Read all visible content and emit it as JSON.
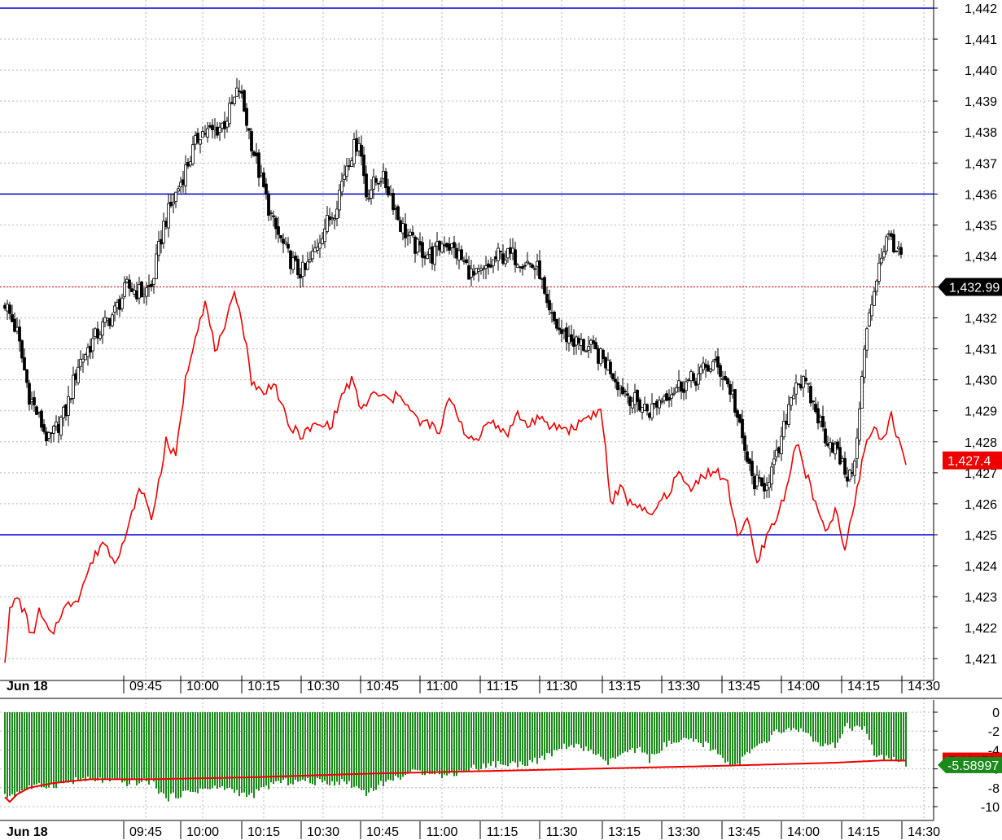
{
  "chart_data": [
    {
      "type": "candlestick",
      "panel": "price",
      "date_label": "Jun 18",
      "x_ticks": [
        "09:45",
        "10:00",
        "10:15",
        "10:30",
        "10:45",
        "11:00",
        "11:15",
        "11:30",
        "13:15",
        "13:30",
        "13:45",
        "14:00",
        "14:15",
        "14:30"
      ],
      "y_ticks": [
        "1,421",
        "1,422",
        "1,423",
        "1,424",
        "1,425",
        "1,426",
        "1,427",
        "1,428",
        "1,429",
        "1,430",
        "1,431",
        "1,432",
        "1,433",
        "1,434",
        "1,435",
        "1,436",
        "1,437",
        "1,438",
        "1,439",
        "1,440",
        "1,441",
        "1,442"
      ],
      "ylim": [
        1420.2,
        1442.2
      ],
      "grid": true,
      "horizontal_lines": [
        1442,
        1436,
        1425
      ],
      "last_price_line": 1433,
      "price_badge": "1,432.99",
      "series": [
        {
          "name": "",
          "type": "close_line",
          "color": "#000000",
          "anchors": [
            [
              0,
              1432.5
            ],
            [
              5,
              1431.5
            ],
            [
              10,
              1429.5
            ],
            [
              18,
              1428
            ],
            [
              25,
              1429
            ],
            [
              30,
              1430.5
            ],
            [
              38,
              1431.5
            ],
            [
              45,
              1432.2
            ],
            [
              50,
              1433
            ],
            [
              56,
              1432.8
            ],
            [
              60,
              1433
            ],
            [
              65,
              1435
            ],
            [
              70,
              1436
            ],
            [
              75,
              1437
            ],
            [
              80,
              1438
            ],
            [
              85,
              1438
            ],
            [
              90,
              1438.3
            ],
            [
              96,
              1439.4
            ],
            [
              100,
              1438
            ],
            [
              103,
              1437
            ],
            [
              110,
              1435
            ],
            [
              116,
              1434
            ],
            [
              120,
              1433.5
            ],
            [
              123,
              1433.5
            ],
            [
              126,
              1434
            ],
            [
              130,
              1434.8
            ],
            [
              135,
              1435.5
            ],
            [
              140,
              1437
            ],
            [
              145,
              1437.8
            ],
            [
              148,
              1436
            ],
            [
              154,
              1436.6
            ],
            [
              158,
              1436
            ],
            [
              162,
              1435
            ],
            [
              168,
              1434.3
            ],
            [
              175,
              1434
            ],
            [
              180,
              1434.5
            ],
            [
              186,
              1434
            ],
            [
              192,
              1433.3
            ],
            [
              197,
              1433.5
            ],
            [
              202,
              1434
            ],
            [
              208,
              1434
            ],
            [
              214,
              1433.8
            ],
            [
              219,
              1433.5
            ],
            [
              222,
              1432.2
            ],
            [
              228,
              1431.5
            ],
            [
              234,
              1431.2
            ],
            [
              240,
              1431
            ],
            [
              247,
              1430.5
            ],
            [
              252,
              1429.8
            ],
            [
              258,
              1429.3
            ],
            [
              264,
              1429
            ],
            [
              270,
              1429.5
            ],
            [
              276,
              1429.8
            ],
            [
              282,
              1430
            ],
            [
              286,
              1430.3
            ],
            [
              290,
              1430.5
            ],
            [
              294,
              1430.2
            ],
            [
              298,
              1429.5
            ],
            [
              302,
              1428
            ],
            [
              306,
              1426.8
            ],
            [
              310,
              1426.5
            ],
            [
              315,
              1427.2
            ],
            [
              318,
              1428
            ],
            [
              321,
              1429.2
            ],
            [
              324,
              1430
            ],
            [
              328,
              1429.8
            ],
            [
              332,
              1429
            ],
            [
              336,
              1428.2
            ],
            [
              340,
              1427.8
            ],
            [
              343,
              1427.2
            ],
            [
              346,
              1426.8
            ],
            [
              349,
              1428
            ],
            [
              352,
              1431
            ],
            [
              355,
              1432.5
            ],
            [
              358,
              1433.8
            ],
            [
              361,
              1434.5
            ],
            [
              363,
              1434.6
            ],
            [
              366,
              1434
            ]
          ]
        },
        {
          "name": "",
          "type": "line",
          "color": "#ee0000",
          "badge": "1,427.4",
          "anchors": [
            [
              0,
              1421
            ],
            [
              2,
              1422.5
            ],
            [
              5,
              1423
            ],
            [
              8,
              1422.5
            ],
            [
              11,
              1421.7
            ],
            [
              14,
              1422.5
            ],
            [
              19,
              1421.7
            ],
            [
              23,
              1422.5
            ],
            [
              27,
              1422.8
            ],
            [
              30,
              1423
            ],
            [
              35,
              1424
            ],
            [
              40,
              1424.8
            ],
            [
              45,
              1424.2
            ],
            [
              50,
              1425
            ],
            [
              53,
              1426
            ],
            [
              56,
              1426.5
            ],
            [
              60,
              1425.5
            ],
            [
              63,
              1426.7
            ],
            [
              66,
              1428
            ],
            [
              70,
              1427.5
            ],
            [
              74,
              1430
            ],
            [
              78,
              1431.5
            ],
            [
              82,
              1432.5
            ],
            [
              86,
              1431
            ],
            [
              90,
              1431.5
            ],
            [
              94,
              1433
            ],
            [
              98,
              1431.5
            ],
            [
              101,
              1430
            ],
            [
              106,
              1429.5
            ],
            [
              110,
              1430
            ],
            [
              116,
              1428.5
            ],
            [
              122,
              1428.2
            ],
            [
              126,
              1428.5
            ],
            [
              130,
              1428.5
            ],
            [
              134,
              1428.6
            ],
            [
              138,
              1429.5
            ],
            [
              142,
              1430
            ],
            [
              146,
              1429
            ],
            [
              150,
              1429.5
            ],
            [
              154,
              1429.5
            ],
            [
              158,
              1429.3
            ],
            [
              162,
              1429.6
            ],
            [
              166,
              1429
            ],
            [
              170,
              1428.6
            ],
            [
              174,
              1428.6
            ],
            [
              178,
              1428.2
            ],
            [
              182,
              1429.5
            ],
            [
              186,
              1428.8
            ],
            [
              190,
              1428
            ],
            [
              194,
              1428.1
            ],
            [
              198,
              1428.8
            ],
            [
              202,
              1428.4
            ],
            [
              206,
              1428.3
            ],
            [
              210,
              1428.9
            ],
            [
              214,
              1428.5
            ],
            [
              218,
              1428.8
            ],
            [
              222,
              1428.5
            ],
            [
              226,
              1428.5
            ],
            [
              232,
              1428.4
            ],
            [
              238,
              1428.8
            ],
            [
              244,
              1429
            ],
            [
              246,
              1427.8
            ],
            [
              248,
              1426
            ],
            [
              252,
              1426.5
            ],
            [
              256,
              1426
            ],
            [
              260,
              1426
            ],
            [
              264,
              1425.5
            ],
            [
              268,
              1426
            ],
            [
              272,
              1426.4
            ],
            [
              276,
              1427
            ],
            [
              280,
              1426.5
            ],
            [
              284,
              1426.8
            ],
            [
              288,
              1427
            ],
            [
              292,
              1427
            ],
            [
              296,
              1426.6
            ],
            [
              300,
              1425
            ],
            [
              304,
              1425.5
            ],
            [
              308,
              1424
            ],
            [
              312,
              1425
            ],
            [
              316,
              1425.5
            ],
            [
              320,
              1426.5
            ],
            [
              324,
              1428
            ],
            [
              328,
              1427
            ],
            [
              332,
              1426
            ],
            [
              336,
              1425
            ],
            [
              340,
              1425.8
            ],
            [
              344,
              1424.5
            ],
            [
              348,
              1426
            ],
            [
              352,
              1427.8
            ],
            [
              356,
              1428.5
            ],
            [
              360,
              1428
            ],
            [
              363,
              1429
            ],
            [
              366,
              1428
            ],
            [
              369,
              1427.4
            ]
          ]
        }
      ]
    },
    {
      "type": "bar",
      "panel": "indicator",
      "date_label": "Jun 18",
      "x_ticks": [
        "09:45",
        "10:00",
        "10:15",
        "10:30",
        "10:45",
        "11:00",
        "11:15",
        "11:30",
        "13:15",
        "13:30",
        "13:45",
        "14:00",
        "14:15",
        "14:30"
      ],
      "y_ticks": [
        "0",
        "-2",
        "-4",
        "-6",
        "-8",
        "-10"
      ],
      "ylim": [
        -11,
        0.5
      ],
      "grid": true,
      "series": [
        {
          "name": "",
          "type": "bar",
          "color": "#1a8a1a",
          "badge": "-5.58997",
          "anchors": [
            [
              0,
              -9
            ],
            [
              5,
              -8.5
            ],
            [
              10,
              -8
            ],
            [
              20,
              -7.7
            ],
            [
              30,
              -7.2
            ],
            [
              40,
              -7.2
            ],
            [
              50,
              -7.5
            ],
            [
              60,
              -7.3
            ],
            [
              66,
              -9.2
            ],
            [
              70,
              -8.8
            ],
            [
              80,
              -8.2
            ],
            [
              90,
              -8
            ],
            [
              96,
              -8.5
            ],
            [
              100,
              -9
            ],
            [
              110,
              -7.5
            ],
            [
              120,
              -7.3
            ],
            [
              130,
              -7.4
            ],
            [
              140,
              -7.4
            ],
            [
              148,
              -8.5
            ],
            [
              155,
              -7.5
            ],
            [
              165,
              -6.5
            ],
            [
              175,
              -6.2
            ],
            [
              180,
              -6.8
            ],
            [
              190,
              -6
            ],
            [
              200,
              -5.5
            ],
            [
              210,
              -5.5
            ],
            [
              220,
              -5
            ],
            [
              230,
              -3.5
            ],
            [
              240,
              -4
            ],
            [
              246,
              -5.5
            ],
            [
              252,
              -4.5
            ],
            [
              260,
              -4
            ],
            [
              264,
              -5
            ],
            [
              270,
              -3.5
            ],
            [
              280,
              -3
            ],
            [
              288,
              -3.5
            ],
            [
              292,
              -4.5
            ],
            [
              296,
              -5.3
            ],
            [
              300,
              -5.5
            ],
            [
              306,
              -4
            ],
            [
              312,
              -3.2
            ],
            [
              316,
              -2
            ],
            [
              320,
              -2
            ],
            [
              326,
              -1.8
            ],
            [
              330,
              -2.5
            ],
            [
              334,
              -3.8
            ],
            [
              340,
              -3.5
            ],
            [
              345,
              -1.5
            ],
            [
              352,
              -1.8
            ],
            [
              356,
              -4.5
            ],
            [
              366,
              -5.3
            ],
            [
              369,
              -5.6
            ]
          ]
        },
        {
          "name": "",
          "type": "line",
          "color": "#ee0000",
          "badge": "-5.13452",
          "anchors": [
            [
              0,
              -9
            ],
            [
              2,
              -9.5
            ],
            [
              5,
              -8.7
            ],
            [
              10,
              -8
            ],
            [
              20,
              -7.5
            ],
            [
              35,
              -7.1
            ],
            [
              60,
              -7.1
            ],
            [
              100,
              -6.9
            ],
            [
              150,
              -6.5
            ],
            [
              220,
              -6.1
            ],
            [
              290,
              -5.7
            ],
            [
              340,
              -5.35
            ],
            [
              360,
              -5.1
            ],
            [
              369,
              -5.13
            ]
          ]
        }
      ]
    }
  ],
  "colors": {
    "up_candle": "#ffffff",
    "down_candle": "#000000",
    "level_line": "#0000cc",
    "last_price_line": "#cc0000",
    "grid": "#b4b4b4",
    "bar": "#1a8a1a",
    "red_line": "#ee0000",
    "black_badge": "#000000",
    "red_badge": "#ee0000",
    "green_badge": "#1a8a1a"
  }
}
